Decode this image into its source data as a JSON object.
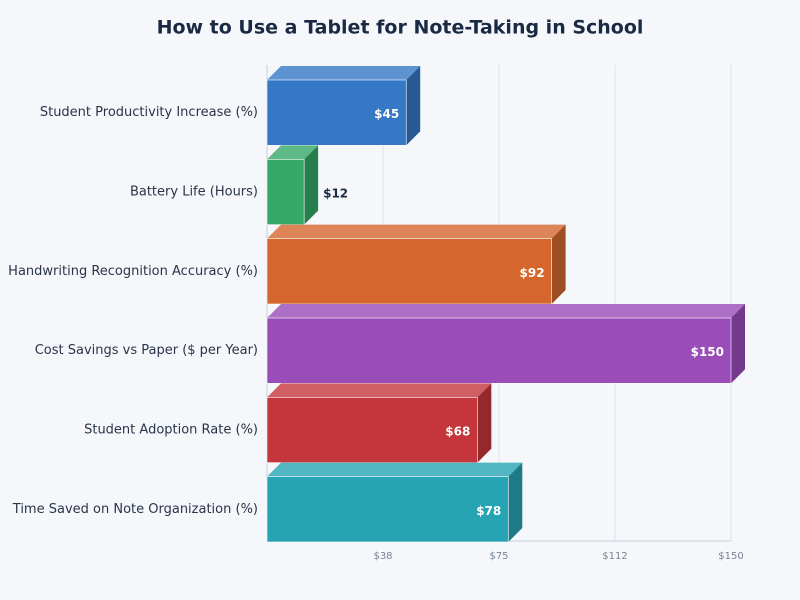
{
  "chart_data": {
    "type": "bar",
    "orientation": "horizontal",
    "title": "How to Use a Tablet for Note-Taking in School",
    "categories": [
      "Student Productivity Increase (%)",
      "Battery Life (Hours)",
      "Handwriting Recognition Accuracy (%)",
      "Cost Savings vs Paper ($ per Year)",
      "Student Adoption Rate (%)",
      "Time Saved on Note Organization (%)"
    ],
    "values": [
      45,
      12,
      92,
      150,
      68,
      78
    ],
    "value_labels": [
      "$45",
      "$12",
      "$92",
      "$150",
      "$68",
      "$78"
    ],
    "colors": [
      "#3478c6",
      "#34a866",
      "#d4662e",
      "#9a4cb8",
      "#c4363c",
      "#27a4b4"
    ],
    "xlim": [
      0,
      150
    ],
    "xticks": [
      {
        "value": 37.5,
        "label": "$38"
      },
      {
        "value": 75,
        "label": "$75"
      },
      {
        "value": 112.5,
        "label": "$112"
      },
      {
        "value": 150,
        "label": "$150"
      }
    ],
    "grid": true
  }
}
